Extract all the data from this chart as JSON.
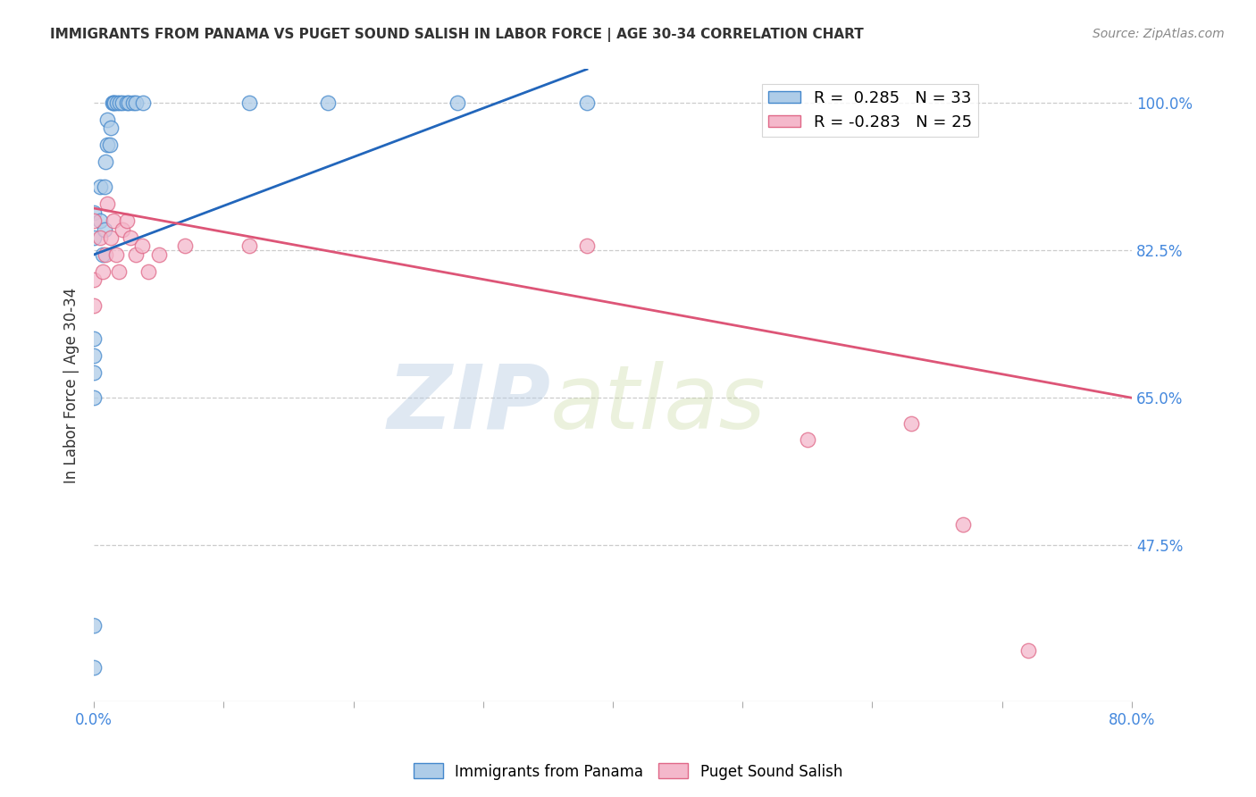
{
  "title": "IMMIGRANTS FROM PANAMA VS PUGET SOUND SALISH IN LABOR FORCE | AGE 30-34 CORRELATION CHART",
  "source": "Source: ZipAtlas.com",
  "ylabel": "In Labor Force | Age 30-34",
  "xlim": [
    0.0,
    0.8
  ],
  "ylim": [
    0.29,
    1.04
  ],
  "yticks": [
    0.475,
    0.65,
    0.825,
    1.0
  ],
  "ytick_labels": [
    "47.5%",
    "65.0%",
    "82.5%",
    "100.0%"
  ],
  "xticks": [
    0.0,
    0.1,
    0.2,
    0.3,
    0.4,
    0.5,
    0.6,
    0.7,
    0.8
  ],
  "blue_R": 0.285,
  "blue_N": 33,
  "pink_R": -0.283,
  "pink_N": 25,
  "blue_label": "Immigrants from Panama",
  "pink_label": "Puget Sound Salish",
  "blue_color": "#aecce8",
  "pink_color": "#f4b8cb",
  "blue_edge_color": "#4488cc",
  "pink_edge_color": "#e06888",
  "blue_line_color": "#2266bb",
  "pink_line_color": "#dd5577",
  "blue_scatter_x": [
    0.0,
    0.0,
    0.0,
    0.0,
    0.0,
    0.0,
    0.0,
    0.0,
    0.005,
    0.005,
    0.007,
    0.008,
    0.008,
    0.009,
    0.01,
    0.01,
    0.012,
    0.013,
    0.014,
    0.015,
    0.016,
    0.018,
    0.02,
    0.022,
    0.025,
    0.027,
    0.03,
    0.032,
    0.038,
    0.12,
    0.18,
    0.28,
    0.38
  ],
  "blue_scatter_y": [
    0.33,
    0.38,
    0.65,
    0.68,
    0.7,
    0.72,
    0.84,
    0.87,
    0.86,
    0.9,
    0.82,
    0.85,
    0.9,
    0.93,
    0.95,
    0.98,
    0.95,
    0.97,
    1.0,
    1.0,
    1.0,
    1.0,
    1.0,
    1.0,
    1.0,
    1.0,
    1.0,
    1.0,
    1.0,
    1.0,
    1.0,
    1.0,
    1.0
  ],
  "pink_scatter_x": [
    0.0,
    0.0,
    0.0,
    0.005,
    0.007,
    0.009,
    0.01,
    0.013,
    0.015,
    0.017,
    0.019,
    0.022,
    0.025,
    0.028,
    0.032,
    0.037,
    0.042,
    0.05,
    0.07,
    0.12,
    0.38,
    0.55,
    0.63,
    0.67,
    0.72
  ],
  "pink_scatter_y": [
    0.76,
    0.79,
    0.86,
    0.84,
    0.8,
    0.82,
    0.88,
    0.84,
    0.86,
    0.82,
    0.8,
    0.85,
    0.86,
    0.84,
    0.82,
    0.83,
    0.8,
    0.82,
    0.83,
    0.83,
    0.83,
    0.6,
    0.62,
    0.5,
    0.35
  ],
  "blue_trend_x": [
    0.0,
    0.38
  ],
  "blue_trend_y": [
    0.82,
    1.04
  ],
  "pink_trend_x": [
    0.0,
    0.8
  ],
  "pink_trend_y": [
    0.875,
    0.65
  ],
  "watermark_zip": "ZIP",
  "watermark_atlas": "atlas",
  "background_color": "#ffffff",
  "grid_color": "#cccccc",
  "title_color": "#333333",
  "axis_label_color": "#333333",
  "tick_label_color": "#4488dd",
  "right_tick_color": "#4488dd"
}
